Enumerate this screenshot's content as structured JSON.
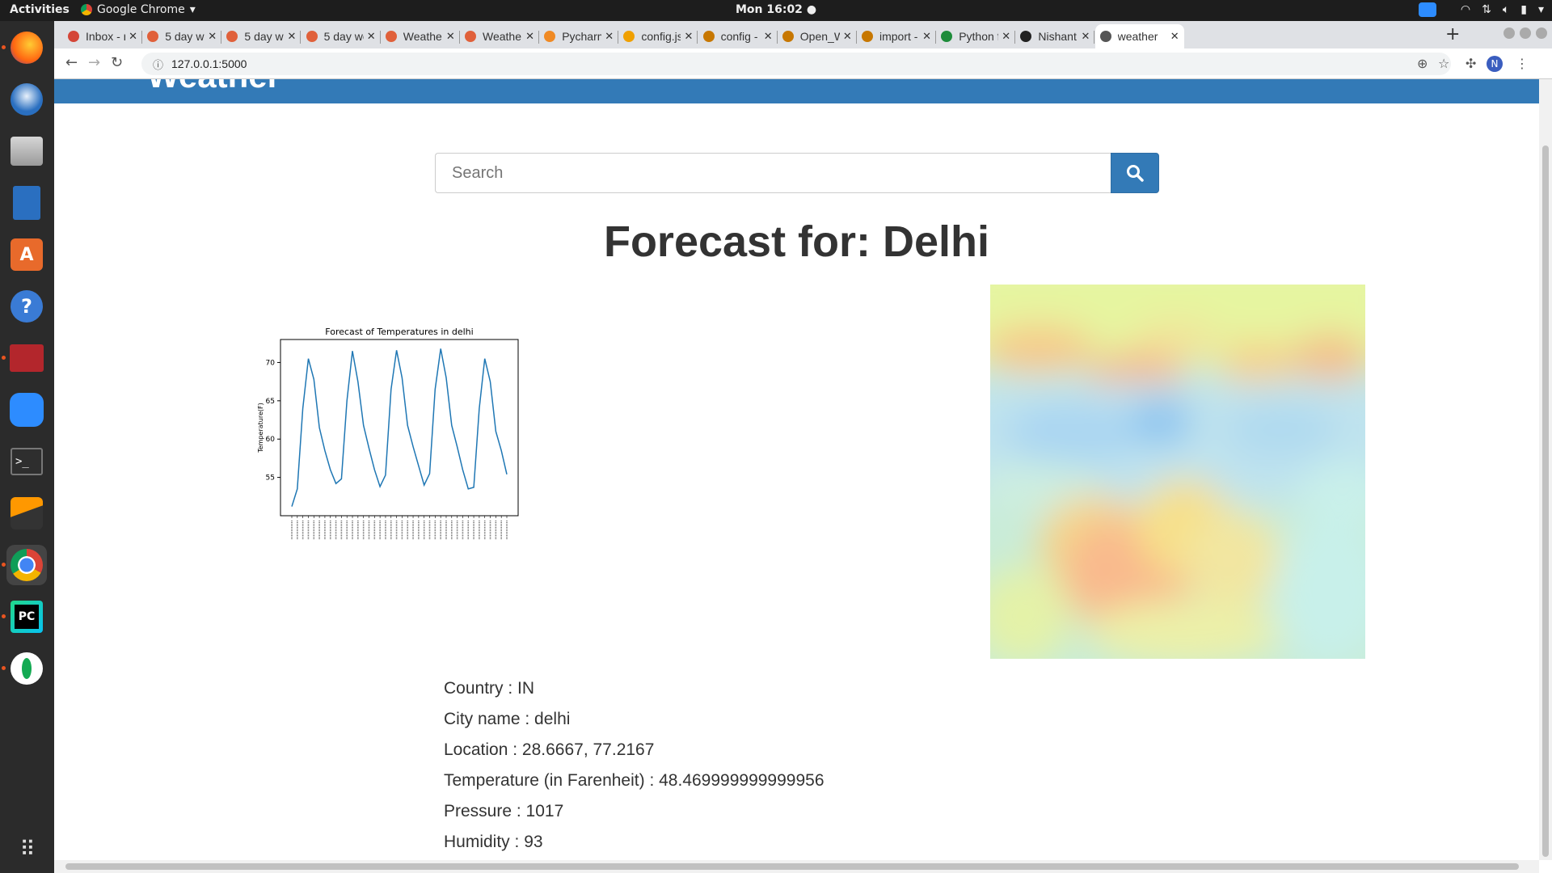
{
  "topbar": {
    "activities": "Activities",
    "app_name": "Google Chrome",
    "clock": "Mon 16:02"
  },
  "dock": {
    "items": [
      "firefox-icon",
      "thunderbird-icon",
      "files-icon",
      "writer-icon",
      "software-icon",
      "help-icon",
      "app-red-icon",
      "zoom-icon",
      "terminal-icon",
      "sublime-icon",
      "chrome-icon",
      "pycharm-icon",
      "mongodb-icon"
    ],
    "show_apps": "grid-icon"
  },
  "tabs": [
    {
      "label": "Inbox - n",
      "color": "#d44638"
    },
    {
      "label": "5 day we",
      "color": "#e0603a"
    },
    {
      "label": "5 day we",
      "color": "#e0603a"
    },
    {
      "label": "5 day we",
      "color": "#e0603a"
    },
    {
      "label": "Weathe",
      "color": "#e0603a"
    },
    {
      "label": "Weathe",
      "color": "#e0603a"
    },
    {
      "label": "Pycharm",
      "color": "#f08a24"
    },
    {
      "label": "config.js",
      "color": "#f0a000"
    },
    {
      "label": "config -",
      "color": "#c77700"
    },
    {
      "label": "Open_W",
      "color": "#c77700"
    },
    {
      "label": "import -",
      "color": "#c77700"
    },
    {
      "label": "Python f",
      "color": "#1e8c3a"
    },
    {
      "label": "Nishant",
      "color": "#222222"
    },
    {
      "label": "weather",
      "color": "#555555"
    }
  ],
  "omnibox": {
    "url": "127.0.0.1:5000"
  },
  "page": {
    "brand": "Weather",
    "search_placeholder": "Search",
    "heading": "Forecast for: Delhi",
    "details": [
      {
        "label": "Country",
        "value": "IN"
      },
      {
        "label": "City name",
        "value": "delhi"
      },
      {
        "label": "Location",
        "value": "28.6667, 77.2167"
      },
      {
        "label": "Temperature (in Farenheit)",
        "value": "48.469999999999956"
      },
      {
        "label": "Pressure",
        "value": "1017"
      },
      {
        "label": "Humidity",
        "value": "93"
      }
    ],
    "accent": "#337ab7"
  },
  "chart_data": {
    "type": "line",
    "title": "Forecast of Temperatures in delhi",
    "ylabel": "Temperature(F)",
    "xlabel": "",
    "yticks": [
      55,
      60,
      65,
      70
    ],
    "ylim": [
      50,
      73
    ],
    "series": [
      {
        "values": [
          51.2,
          53.5,
          64.0,
          70.5,
          67.8,
          61.5,
          58.5,
          56.0,
          54.2,
          54.8,
          65.0,
          71.5,
          67.5,
          61.8,
          58.8,
          56.0,
          53.8,
          55.3,
          66.5,
          71.6,
          68.0,
          61.8,
          59.0,
          56.5,
          54.0,
          55.5,
          66.5,
          71.8,
          68.0,
          61.8,
          59.0,
          56.0,
          53.5,
          53.7,
          64.0,
          70.5,
          67.5,
          61.0,
          58.5,
          55.4
        ]
      }
    ],
    "line_color": "#1f77b4"
  }
}
